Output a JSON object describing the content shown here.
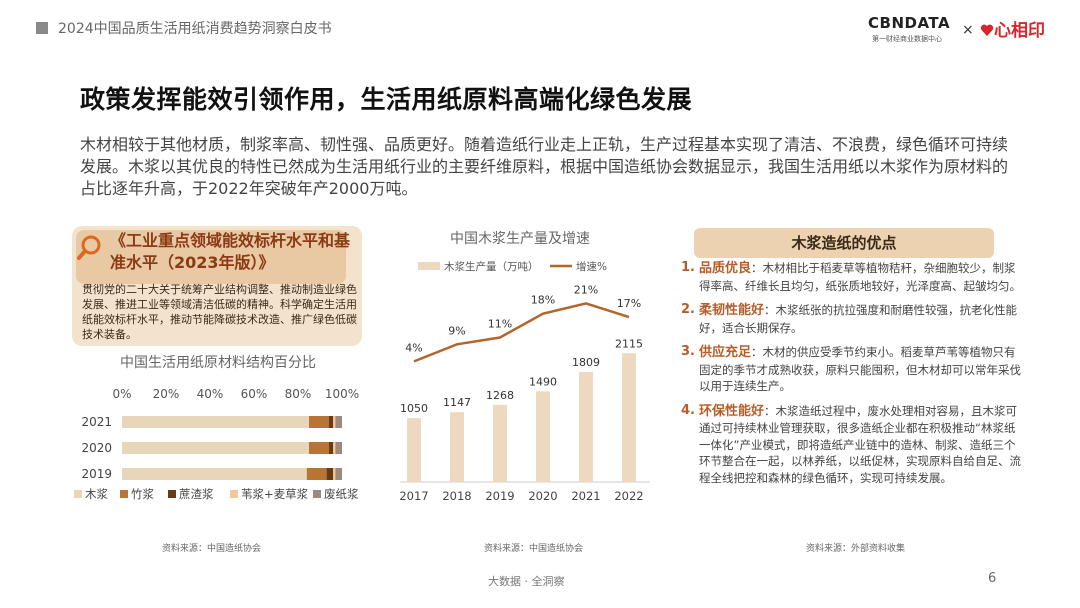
{
  "header": {
    "report_title": "2024中国品质生活用纸消费趋势洞察白皮书",
    "logo_main": "CBNDATA",
    "logo_sub": "第一财经商业数据中心",
    "logo_x": "×",
    "partner_logo": "心相印"
  },
  "main_title": "政策发挥能效引领作用，生活用纸原料高端化绿色发展",
  "intro_text": "木材相较于其他材质，制浆率高、韧性强、品质更好。随着造纸行业走上正轨，生产过程基本实现了清洁、不浪费，绿色循环可持续发展。木浆以其优良的特性已然成为生活用纸行业的主要纤维原料，根据中国造纸协会数据显示，我国生活用纸以木浆作为原材料的占比逐年升高，于2022年突破年产2000万吨。",
  "policy": {
    "title": "《工业重点领域能效标杆水平和基准水平（2023年版）》",
    "body": "贯彻党的二十大关于统筹产业结构调整、推动制造业绿色发展、推进工业等领域清洁低碳的精神。科学确定生活用纸能效标杆水平，推动节能降碳技术改造、推广绿色低碳技术装备。"
  },
  "chart_data": [
    {
      "type": "bar",
      "orientation": "horizontal",
      "stacked": true,
      "title": "中国生活用纸原材料结构百分比",
      "categories": [
        "2021",
        "2020",
        "2019"
      ],
      "xlim": [
        0,
        100
      ],
      "xticks": [
        "0%",
        "20%",
        "40%",
        "60%",
        "80%",
        "100%"
      ],
      "series": [
        {
          "name": "木浆",
          "color": "#e8d6bb",
          "values": [
            85,
            85,
            84
          ]
        },
        {
          "name": "竹浆",
          "color": "#b87435",
          "values": [
            9,
            9,
            9
          ]
        },
        {
          "name": "蔗渣浆",
          "color": "#6b3a12",
          "values": [
            2,
            2,
            3
          ]
        },
        {
          "name": "苇浆+麦草浆",
          "color": "#f0c89a",
          "values": [
            1,
            1,
            1
          ]
        },
        {
          "name": "废纸浆",
          "color": "#9a8a80",
          "values": [
            3,
            3,
            3
          ]
        }
      ],
      "source": "资料来源：中国造纸协会"
    },
    {
      "type": "bar+line",
      "title": "中国木浆生产量及增速",
      "categories": [
        "2017",
        "2018",
        "2019",
        "2020",
        "2021",
        "2022"
      ],
      "series": [
        {
          "name": "木浆生产量（万吨）",
          "color": "#ecd9bf",
          "values": [
            1050,
            1147,
            1268,
            1490,
            1809,
            2115
          ],
          "labels": [
            "1050",
            "1147",
            "1268",
            "1490",
            "1809",
            "2115"
          ]
        },
        {
          "name": "增速%",
          "color": "#b3652c",
          "values": [
            4,
            9,
            11,
            18,
            21,
            17
          ],
          "labels": [
            "4%",
            "9%",
            "11%",
            "18%",
            "21%",
            "17%"
          ]
        }
      ],
      "source": "资料来源：中国造纸协会"
    }
  ],
  "advantages": {
    "title": "木浆造纸的优点",
    "items": [
      {
        "num": "1.",
        "head": "品质优良",
        "text": "：木材相比于稻麦草等植物秸秆，杂细胞较少，制浆得率高、纤维长且均匀，纸张质地较好，光泽度高、起皱均匀。"
      },
      {
        "num": "2.",
        "head": "柔韧性能好",
        "text": "：木浆纸张的抗拉强度和耐磨性较强，抗老化性能好，适合长期保存。"
      },
      {
        "num": "3.",
        "head": "供应充足",
        "text": "：木材的供应受季节约束小。稻麦草芦苇等植物只有固定的季节才成熟收获，原料只能囤积，但木材却可以常年采伐以用于连续生产。"
      },
      {
        "num": "4.",
        "head": "环保性能好",
        "text": "：木浆造纸过程中，废水处理相对容易，且木浆可通过可持续林业管理获取，很多造纸企业都在积极推动“林浆纸一体化”产业模式，即将造纸产业链中的造林、制浆、造纸三个环节整合在一起，以林养纸，以纸促林，实现原料自给自足、流程全线把控和森林的绿色循环，实现可持续发展。"
      }
    ],
    "source": "资料来源：外部资料收集"
  },
  "footer": {
    "center": "大数据 · 全洞察",
    "page": "6"
  }
}
